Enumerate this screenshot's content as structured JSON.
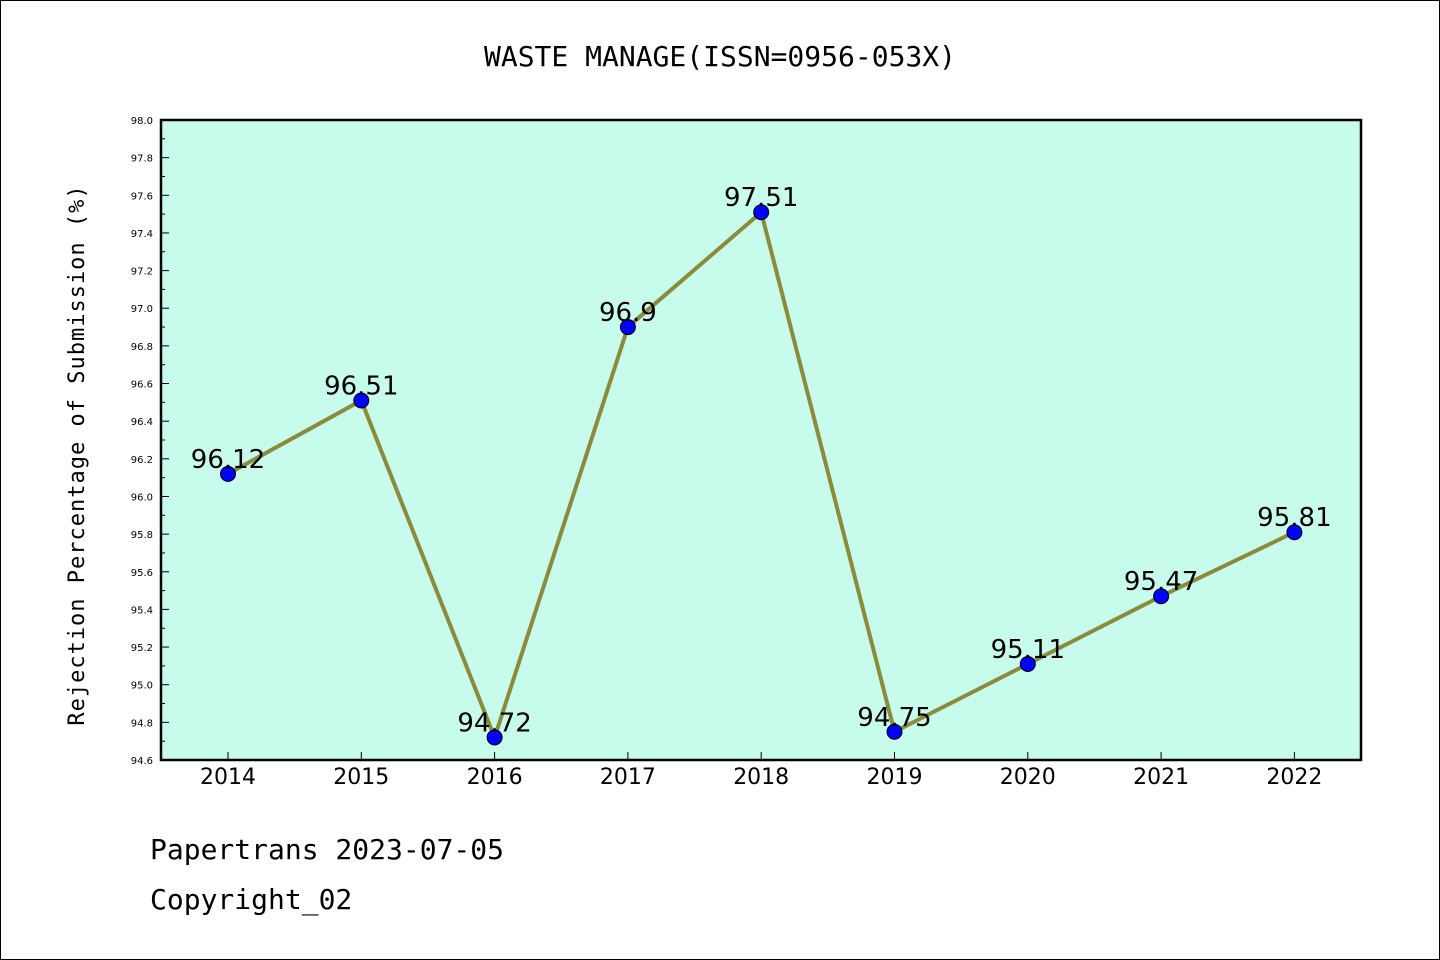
{
  "chart_data": {
    "type": "line",
    "title": "WASTE MANAGE(ISSN=0956-053X)",
    "xlabel": "",
    "ylabel": "Rejection Percentage of Submission (%)",
    "categories": [
      "2014",
      "2015",
      "2016",
      "2017",
      "2018",
      "2019",
      "2020",
      "2021",
      "2022"
    ],
    "series": [
      {
        "values": [
          96.12,
          96.51,
          94.72,
          96.9,
          97.51,
          94.75,
          95.11,
          95.47,
          95.81
        ],
        "data_labels": [
          "96.12",
          "96.51",
          "94.72",
          "96.9",
          "97.51",
          "94.75",
          "95.11",
          "95.47",
          "95.81"
        ]
      }
    ],
    "ylim": [
      94.6,
      98.0
    ],
    "yticks": [
      "94.6",
      "94.8",
      "95.0",
      "95.2",
      "95.4",
      "95.6",
      "95.8",
      "96.0",
      "96.2",
      "96.4",
      "96.6",
      "96.8",
      "97.0",
      "97.2",
      "97.4",
      "97.6",
      "97.8",
      "98.0"
    ],
    "grid": false,
    "colors": {
      "plot_background": "#c7fcec",
      "line": "#8b8b3b",
      "marker": "#0000ff"
    }
  },
  "footer": {
    "line1": "Papertrans 2023-07-05",
    "line2": "Copyright_02"
  }
}
